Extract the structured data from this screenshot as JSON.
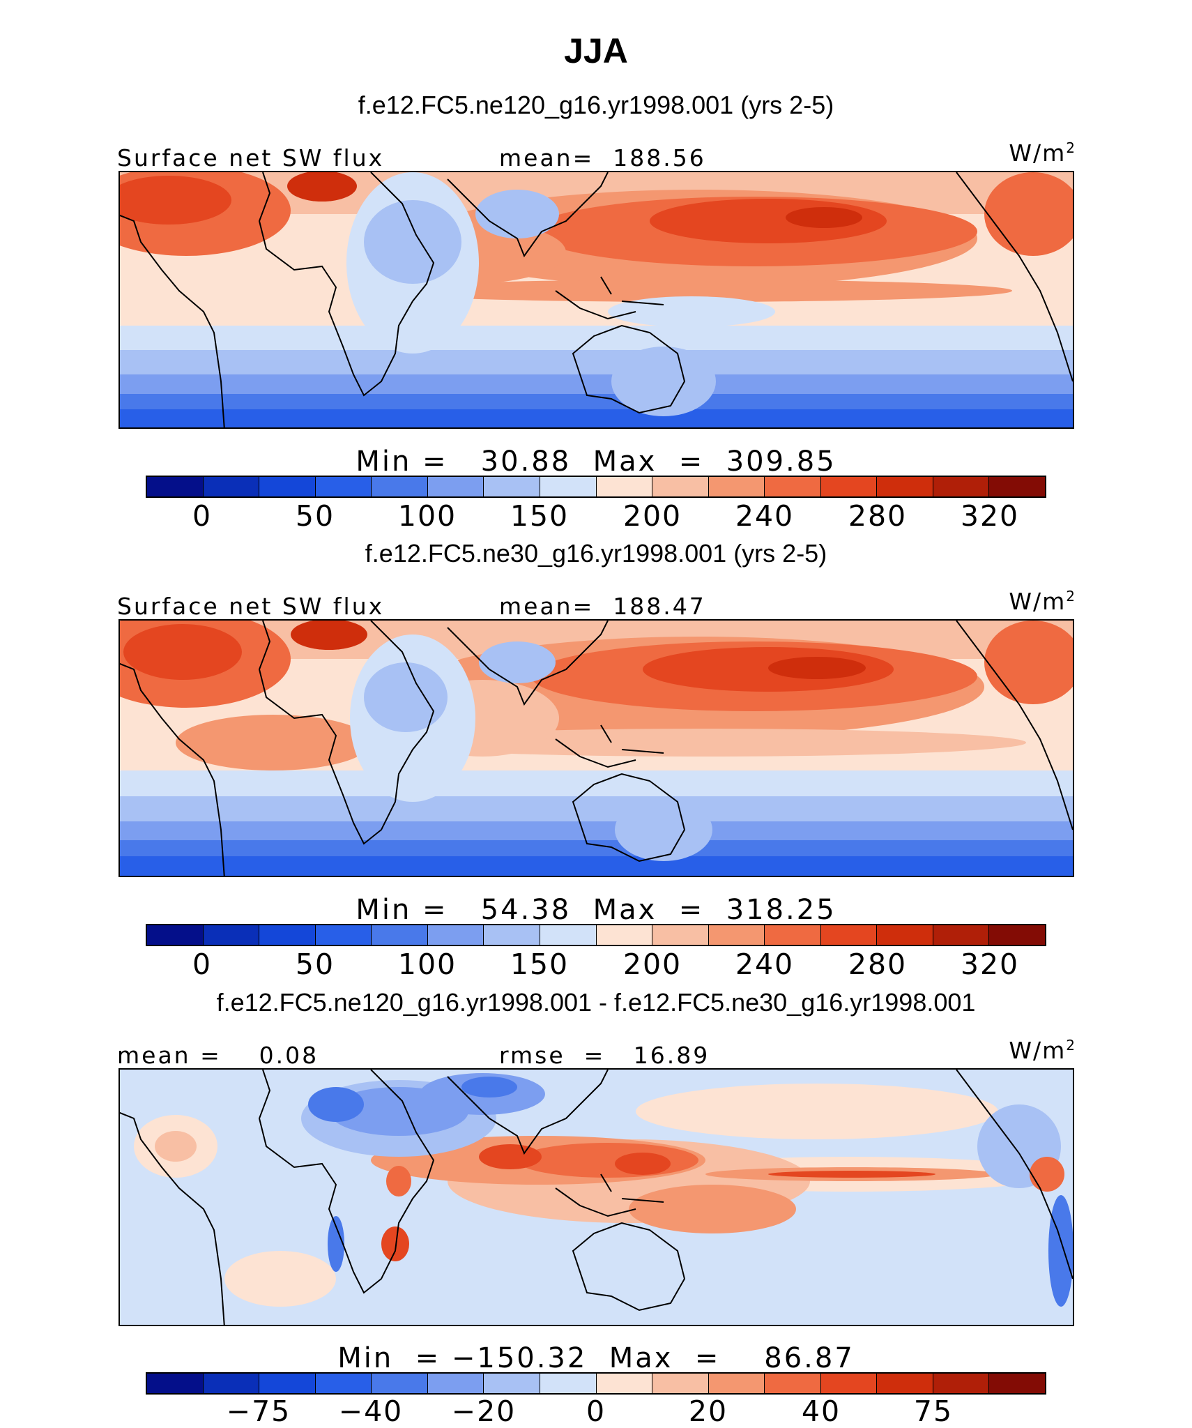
{
  "title": "JJA",
  "colors": {
    "absolute_palette": [
      "#040f8a",
      "#0a2fb8",
      "#1447d9",
      "#285fe8",
      "#4979ea",
      "#7c9ef0",
      "#a8c1f4",
      "#d2e2f9",
      "#fde3d3",
      "#f8bfa4",
      "#f49770",
      "#ef6a41",
      "#e44620",
      "#cf2e0c",
      "#b01f08",
      "#830c05"
    ],
    "difference_palette": [
      "#040f8a",
      "#0a2fb8",
      "#1447d9",
      "#285fe8",
      "#4979ea",
      "#7c9ef0",
      "#a8c1f4",
      "#d2e2f9",
      "#fde3d3",
      "#f8bfa4",
      "#f49770",
      "#ef6a41",
      "#e44620",
      "#cf2e0c",
      "#b01f08",
      "#830c05"
    ],
    "coast": "#000000"
  },
  "panels": [
    {
      "case_title": "f.e12.FC5.ne120_g16.yr1998.001 (yrs 2-5)",
      "variable": "Surface net SW flux",
      "stat_left": "",
      "stat_right": "mean=  188.56",
      "units": "W/m",
      "units_exp": "2",
      "minmax": "Min =   30.88  Max  =  309.85",
      "ticks": [
        "0",
        "50",
        "100",
        "150",
        "200",
        "240",
        "280",
        "320"
      ]
    },
    {
      "case_title": "f.e12.FC5.ne30_g16.yr1998.001 (yrs 2-5)",
      "variable": "Surface net SW flux",
      "stat_left": "",
      "stat_right": "mean=  188.47",
      "units": "W/m",
      "units_exp": "2",
      "minmax": "Min =   54.38  Max  =  318.25",
      "ticks": [
        "0",
        "50",
        "100",
        "150",
        "200",
        "240",
        "280",
        "320"
      ]
    },
    {
      "case_title": "f.e12.FC5.ne120_g16.yr1998.001 - f.e12.FC5.ne30_g16.yr1998.001",
      "variable": "mean =    0.08",
      "stat_left": "",
      "stat_right": "rmse  =   16.89",
      "units": "W/m",
      "units_exp": "2",
      "minmax": "Min  = −150.32  Max  =    86.87",
      "ticks": [
        "−75",
        "−40",
        "−20",
        "0",
        "20",
        "40",
        "75"
      ]
    }
  ]
}
